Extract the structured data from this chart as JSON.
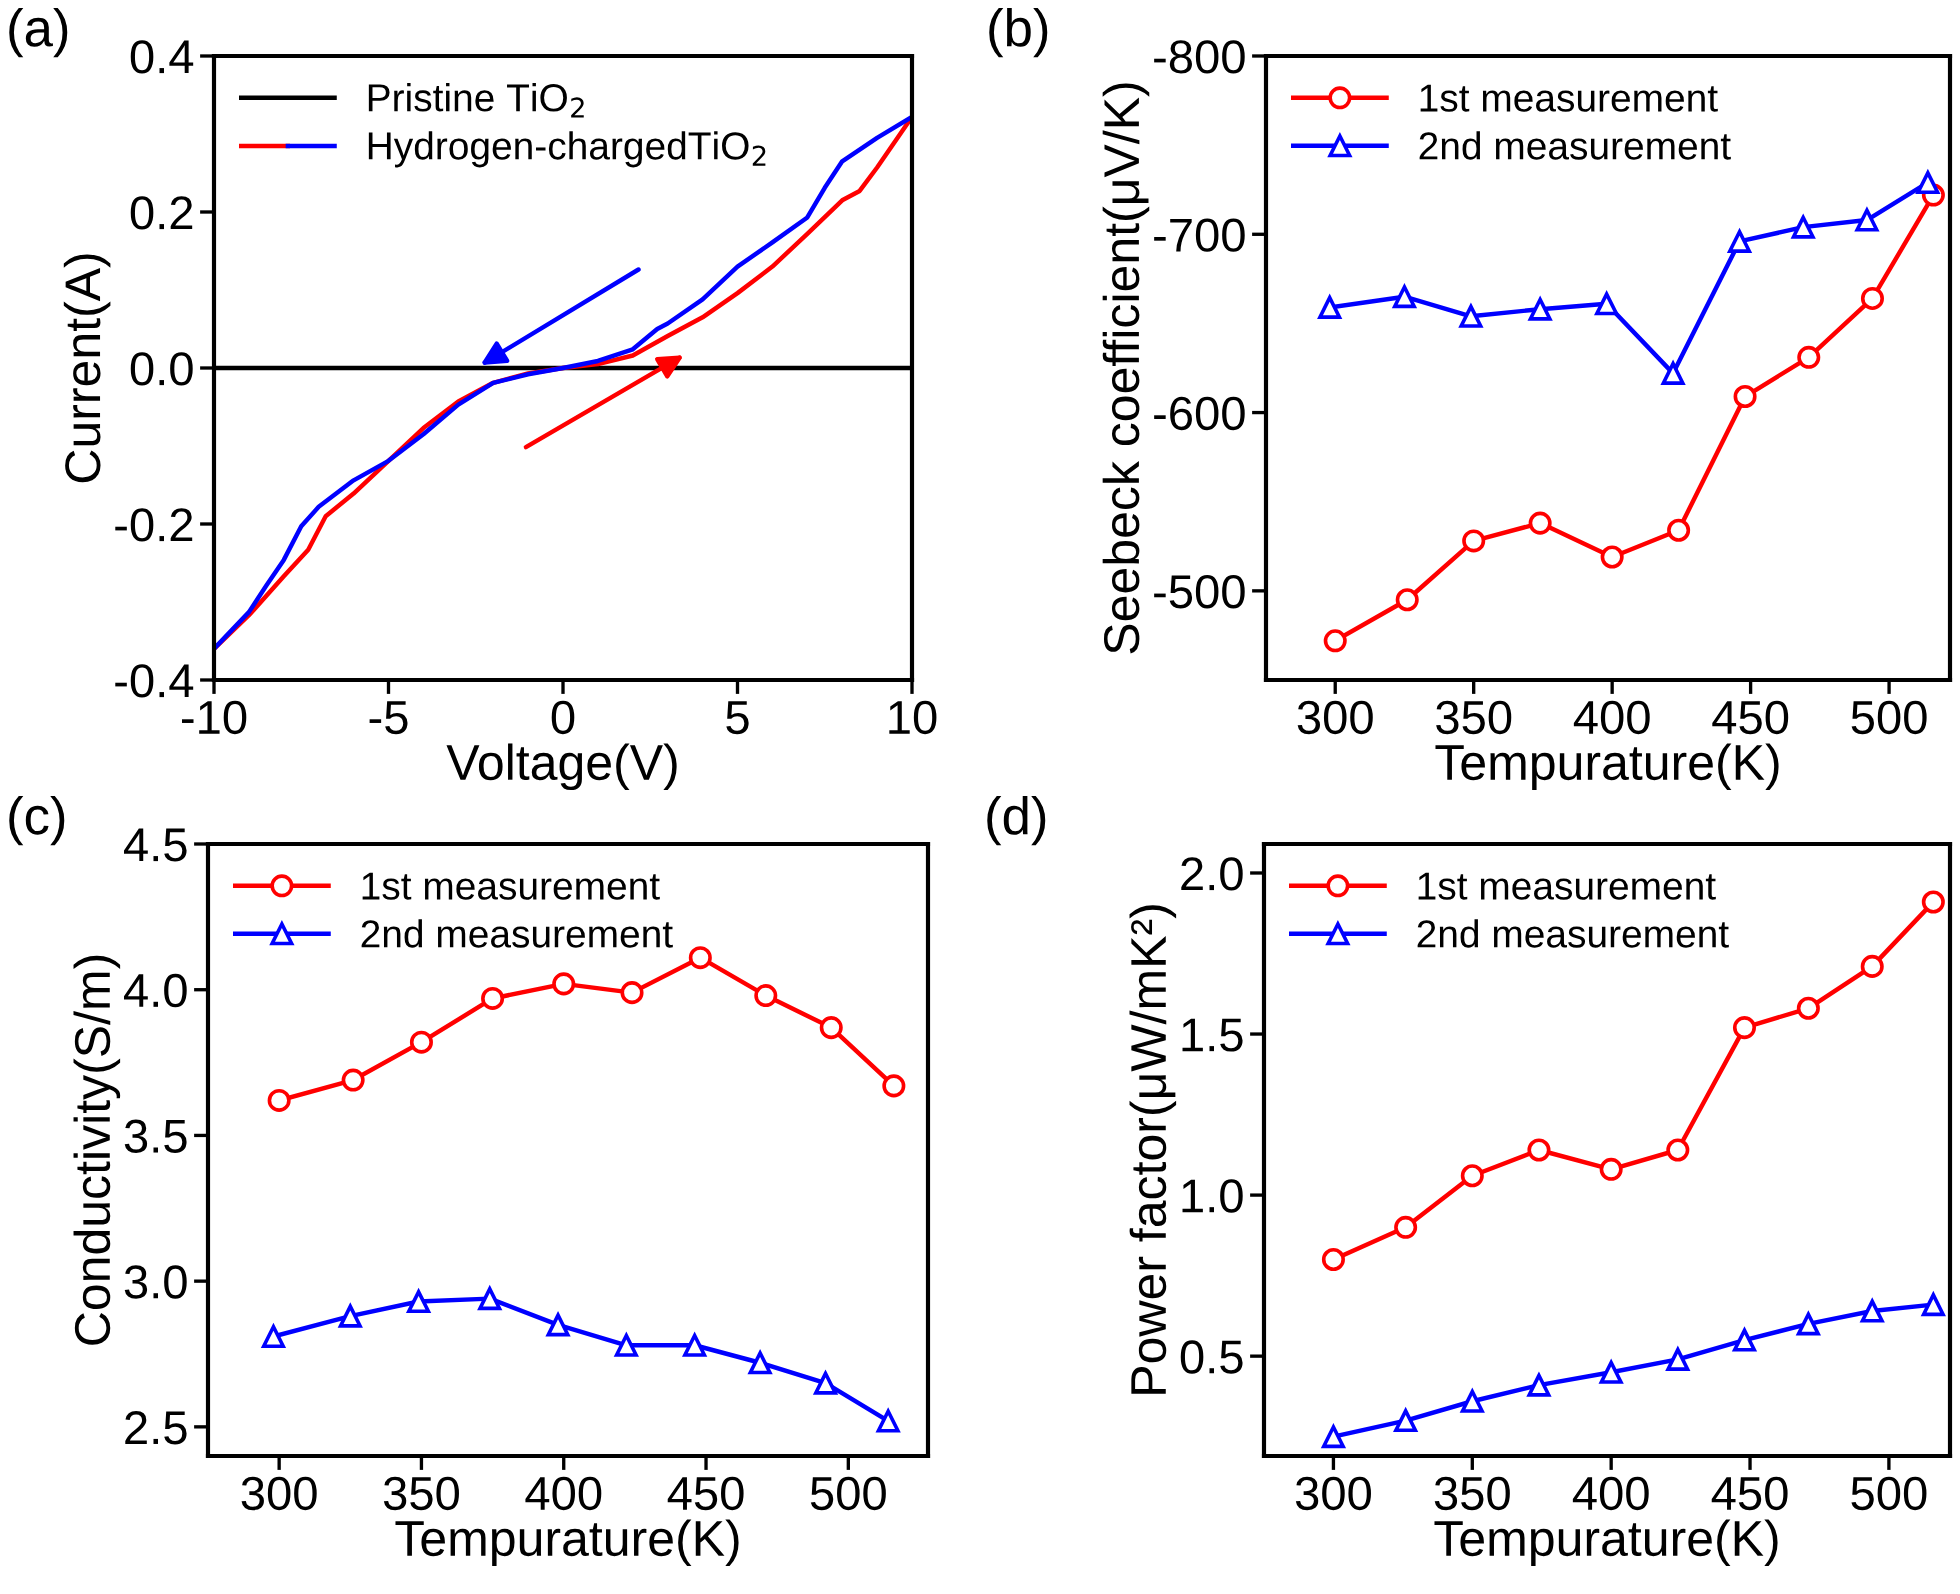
{
  "chart_data": [
    {
      "type": "line",
      "title": "(a)",
      "xlabel": "Voltage(V)",
      "ylabel": "Current(A)",
      "xlim": [
        -10,
        10
      ],
      "ylim": [
        -0.4,
        0.4
      ],
      "xticks": [
        -10,
        -5,
        0,
        5,
        10
      ],
      "yticks": [
        -0.4,
        -0.2,
        {
          "value": 0,
          "label": "0.0"
        },
        0.2,
        0.4
      ],
      "legend": "top left",
      "grid": false,
      "marker": "none",
      "line_style": "solid",
      "series": [
        {
          "name": "Pristine TiO$_{2}$",
          "color": "#000000",
          "x": [
            -10,
            10
          ],
          "values": [
            0,
            0
          ]
        },
        {
          "name": "Hydrogen-chargedTiO$_{2}$",
          "color": "#ff0000",
          "x": [
            -10,
            -9,
            -8,
            -7.3,
            -6.8,
            -6,
            -5,
            -4,
            -3,
            -2,
            -1,
            0,
            1,
            2,
            3,
            4,
            5,
            6,
            7,
            8,
            8.5,
            9,
            10
          ],
          "values": [
            -0.36,
            -0.317,
            -0.267,
            -0.233,
            -0.19,
            -0.161,
            -0.119,
            -0.077,
            -0.043,
            -0.019,
            -0.007,
            0,
            0.005,
            0.016,
            0.041,
            0.065,
            0.096,
            0.13,
            0.172,
            0.215,
            0.227,
            0.257,
            0.322
          ]
        },
        {
          "color": "#0000ff",
          "x": [
            10,
            9,
            8,
            7.5,
            7,
            6,
            5,
            4,
            3,
            2.7,
            2,
            1,
            0,
            -1,
            -2,
            -3,
            -4,
            -5,
            -6,
            -7,
            -7.5,
            -8,
            -8.5,
            -9,
            -10
          ],
          "values": [
            0.322,
            0.295,
            0.265,
            0.231,
            0.193,
            0.161,
            0.13,
            0.088,
            0.057,
            0.05,
            0.024,
            0.009,
            0,
            -0.008,
            -0.019,
            -0.047,
            -0.085,
            -0.119,
            -0.144,
            -0.178,
            -0.203,
            -0.246,
            -0.279,
            -0.313,
            -0.36
          ]
        }
      ]
    },
    {
      "type": "line",
      "title": "(b)",
      "xlabel": "Tempurature(K)",
      "ylabel": "Seebeck coefficient(μV/K)",
      "xlim": [
        275,
        522
      ],
      "ylim": [
        -450,
        -800
      ],
      "xticks": [
        300,
        350,
        400,
        450,
        500
      ],
      "yticks": [
        -500,
        -600,
        -700,
        -800
      ],
      "legend": "top left",
      "grid": false,
      "line_style": "solid",
      "series": [
        {
          "name": "1st measurement",
          "color": "#ff0000",
          "marker": "circle",
          "x": [
            300,
            326,
            350,
            374,
            400,
            424,
            448,
            471,
            494,
            516
          ],
          "values": [
            -472,
            -495,
            -528,
            -538,
            -519,
            -534,
            -609,
            -631,
            -664,
            -722
          ]
        },
        {
          "name": "2nd measurement",
          "color": "#0000ff",
          "marker": "triangle",
          "x": [
            298,
            325,
            349,
            374,
            398,
            422,
            446,
            469,
            492,
            514
          ],
          "values": [
            -659,
            -665,
            -654,
            -658,
            -661,
            -622,
            -696,
            -704,
            -708,
            -729
          ]
        }
      ]
    },
    {
      "type": "line",
      "title": "(c)",
      "xlabel": "Tempurature(K)",
      "ylabel": "Conductivity(S/m)",
      "xlim": [
        275,
        528
      ],
      "ylim": [
        2.4,
        4.5
      ],
      "xticks": [
        300,
        350,
        400,
        450,
        500
      ],
      "yticks": [
        2.5,
        {
          "value": 3,
          "label": "3.0"
        },
        3.5,
        {
          "value": 4,
          "label": "4.0"
        },
        4.5
      ],
      "legend": "top left",
      "grid": false,
      "line_style": "solid",
      "series": [
        {
          "name": "1st measurement",
          "color": "#ff0000",
          "marker": "circle",
          "x": [
            300,
            326,
            350,
            375,
            400,
            424,
            448,
            471,
            494,
            516
          ],
          "values": [
            3.62,
            3.69,
            3.82,
            3.97,
            4.02,
            3.99,
            4.11,
            3.98,
            3.87,
            3.67
          ]
        },
        {
          "name": "2nd measurement",
          "color": "#0000ff",
          "marker": "triangle",
          "x": [
            298,
            325,
            349,
            374,
            398,
            422,
            446,
            469,
            492,
            514
          ],
          "values": [
            2.81,
            2.88,
            2.93,
            2.94,
            2.85,
            2.78,
            2.78,
            2.72,
            2.65,
            2.52
          ]
        }
      ]
    },
    {
      "type": "line",
      "title": "(d)",
      "xlabel": "Tempurature(K)",
      "ylabel": "Power factor(μW/mK²)",
      "xlim": [
        275,
        522
      ],
      "ylim": [
        0.19,
        2.09
      ],
      "xticks": [
        300,
        350,
        400,
        450,
        500
      ],
      "yticks": [
        0.5,
        {
          "value": 1,
          "label": "1.0"
        },
        1.5,
        {
          "value": 2,
          "label": "2.0"
        }
      ],
      "legend": "top left",
      "grid": false,
      "line_style": "solid",
      "series": [
        {
          "name": "1st measurement",
          "color": "#ff0000",
          "marker": "circle",
          "x": [
            300,
            326,
            350,
            374,
            400,
            424,
            448,
            471,
            494,
            516
          ],
          "values": [
            0.8,
            0.9,
            1.06,
            1.14,
            1.08,
            1.14,
            1.52,
            1.58,
            1.71,
            1.91
          ]
        },
        {
          "name": "2nd measurement",
          "color": "#0000ff",
          "marker": "triangle",
          "x": [
            300,
            326,
            350,
            374,
            400,
            424,
            448,
            471,
            494,
            516
          ],
          "values": [
            0.25,
            0.3,
            0.36,
            0.41,
            0.45,
            0.49,
            0.55,
            0.6,
            0.64,
            0.66
          ]
        }
      ]
    }
  ]
}
